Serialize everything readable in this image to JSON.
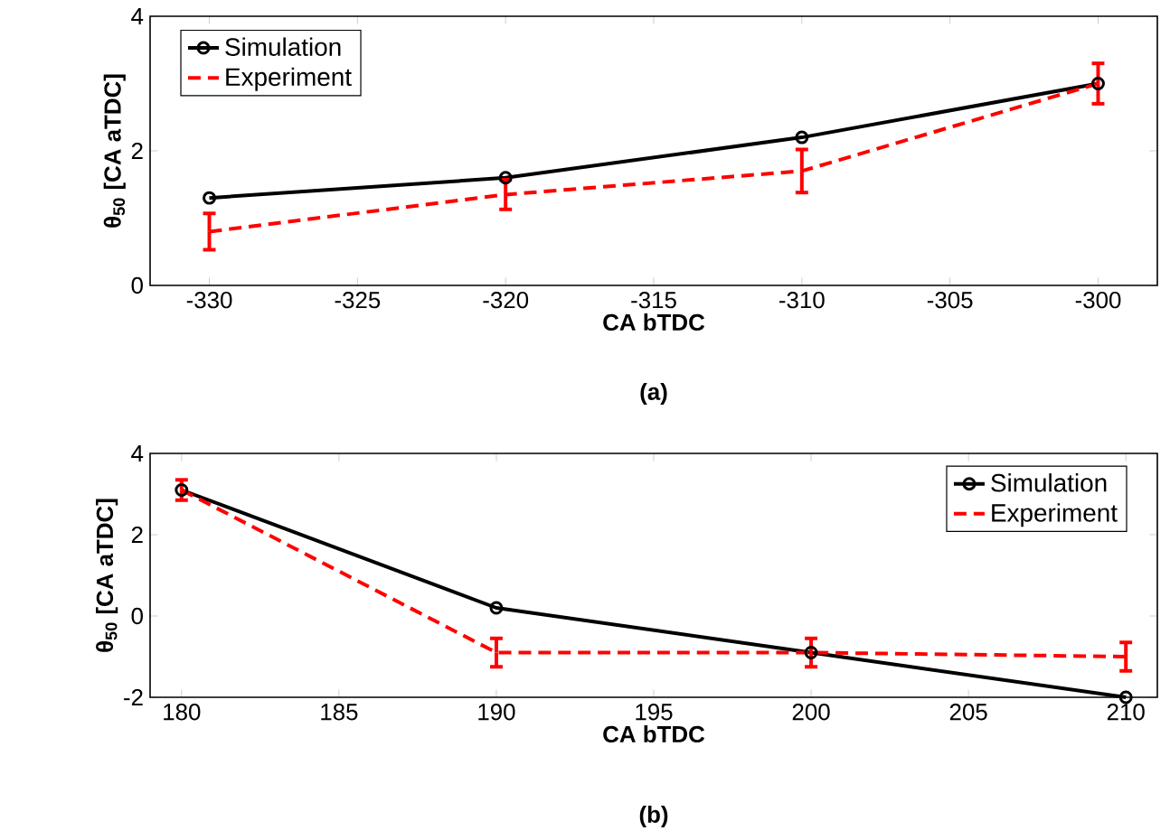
{
  "chart_data": [
    {
      "type": "line",
      "xlabel": "CA bTDC",
      "ylabel": "θ$_{50}$ [CA aTDC]",
      "x": [
        -330,
        -320,
        -310,
        -300
      ],
      "xlim": [
        -332,
        -298
      ],
      "xticks": [
        -330,
        -325,
        -320,
        -315,
        -310,
        -305,
        -300
      ],
      "ylim": [
        0,
        4
      ],
      "yticks": [
        0,
        2,
        4
      ],
      "legend": "top left",
      "annotations": [
        "(a)"
      ],
      "series": [
        {
          "name": "Simulation",
          "color": "#000000",
          "values": [
            1.3,
            1.6,
            2.2,
            3.0
          ],
          "marker": "circle",
          "line_style": "solid"
        },
        {
          "name": "Experiment",
          "color": "#ff0000",
          "values": [
            0.8,
            1.35,
            1.7,
            3.0
          ],
          "errors": [
            0.27,
            0.22,
            0.32,
            0.3
          ],
          "marker": "none",
          "line_style": "dashed"
        }
      ]
    },
    {
      "type": "line",
      "xlabel": "CA bTDC",
      "ylabel": "θ$_{50}$ [CA aTDC]",
      "x": [
        180,
        190,
        200,
        210
      ],
      "xlim": [
        179,
        211
      ],
      "xticks": [
        180,
        185,
        190,
        195,
        200,
        205,
        210
      ],
      "ylim": [
        -2,
        4
      ],
      "yticks": [
        -2,
        0,
        2,
        4
      ],
      "legend": "top right",
      "annotations": [
        "(b)"
      ],
      "series": [
        {
          "name": "Simulation",
          "color": "#000000",
          "values": [
            3.1,
            0.2,
            -0.9,
            -2.0
          ],
          "marker": "circle",
          "line_style": "solid"
        },
        {
          "name": "Experiment",
          "color": "#ff0000",
          "values": [
            3.1,
            -0.9,
            -0.9,
            -1.0
          ],
          "errors": [
            0.25,
            0.35,
            0.35,
            0.35
          ],
          "marker": "none",
          "line_style": "dashed"
        }
      ]
    }
  ]
}
